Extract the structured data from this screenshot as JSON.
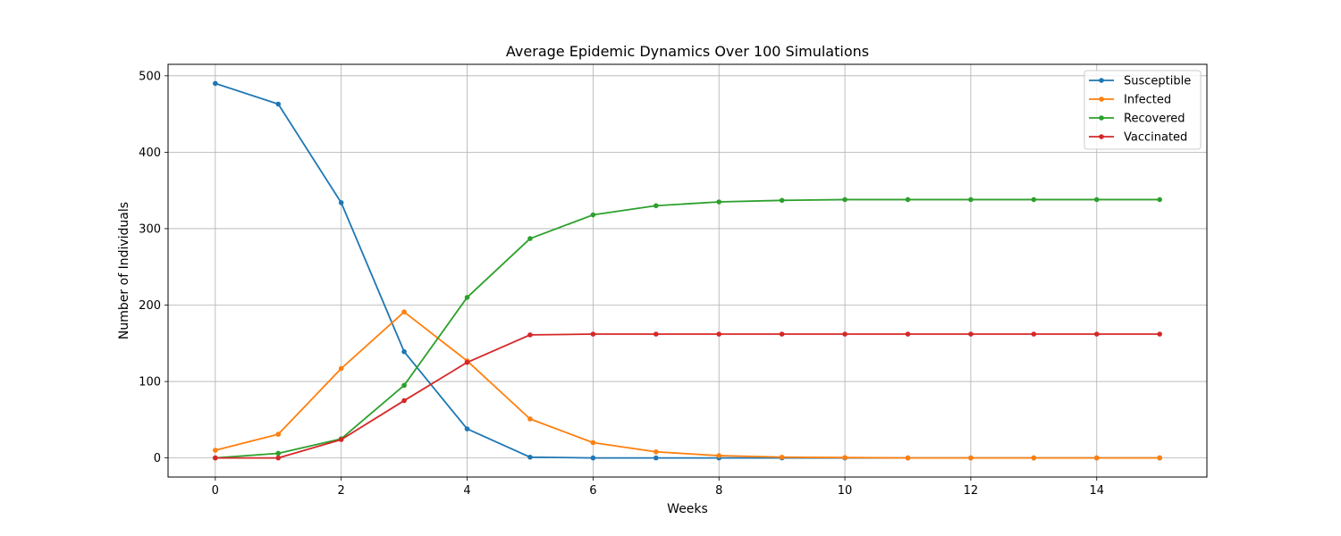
{
  "chart_data": {
    "type": "line",
    "title": "Average Epidemic Dynamics Over 100 Simulations",
    "xlabel": "Weeks",
    "ylabel": "Number of Individuals",
    "x": [
      0,
      1,
      2,
      3,
      4,
      5,
      6,
      7,
      8,
      9,
      10,
      11,
      12,
      13,
      14,
      15
    ],
    "xlim": [
      -0.75,
      15.75
    ],
    "ylim": [
      -25,
      515
    ],
    "xticks": [
      0,
      2,
      4,
      6,
      8,
      10,
      12,
      14
    ],
    "yticks": [
      0,
      100,
      200,
      300,
      400,
      500
    ],
    "grid": true,
    "legend_position": "top-right",
    "series": [
      {
        "name": "Susceptible",
        "color": "#1f77b4",
        "values": [
          490,
          463,
          334,
          139,
          38,
          1,
          0,
          0,
          0,
          0,
          0,
          0,
          0,
          0,
          0,
          0
        ]
      },
      {
        "name": "Infected",
        "color": "#ff7f0e",
        "values": [
          10,
          31,
          117,
          191,
          127,
          51,
          20,
          8,
          3,
          1,
          0.5,
          0,
          0,
          0,
          0,
          0
        ]
      },
      {
        "name": "Recovered",
        "color": "#2ca02c",
        "values": [
          0,
          6,
          25,
          95,
          210,
          287,
          318,
          330,
          335,
          337,
          338,
          338,
          338,
          338,
          338,
          338
        ]
      },
      {
        "name": "Vaccinated",
        "color": "#d62728",
        "values": [
          0,
          0,
          24,
          75,
          125,
          161,
          162,
          162,
          162,
          162,
          162,
          162,
          162,
          162,
          162,
          162
        ]
      }
    ]
  }
}
